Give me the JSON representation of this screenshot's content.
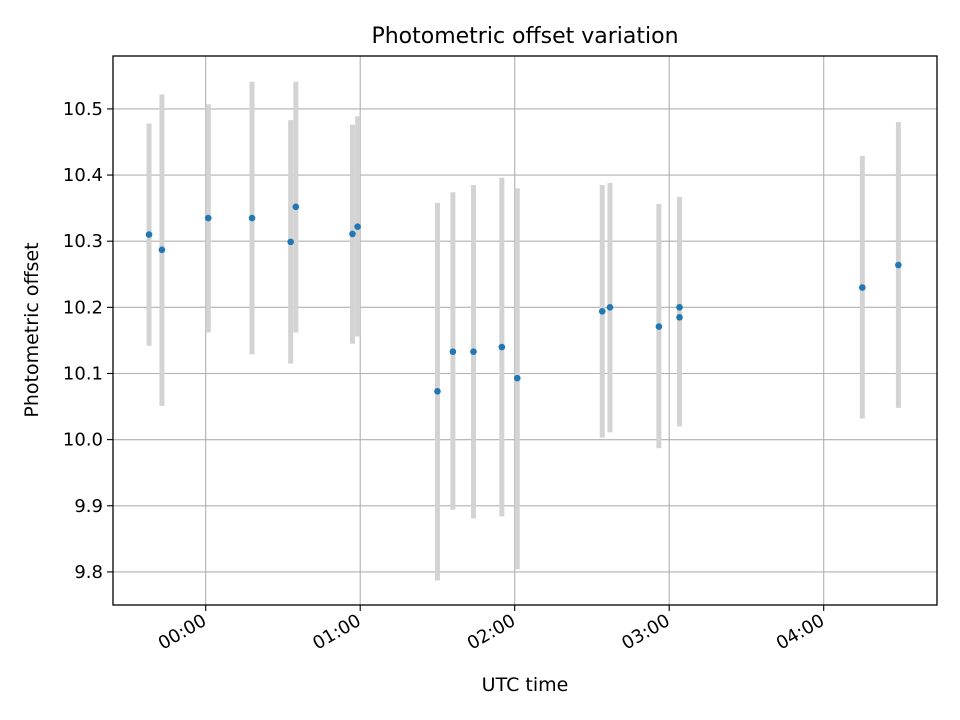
{
  "chart_data": {
    "type": "scatter",
    "title": "Photometric offset variation",
    "xlabel": "UTC time",
    "ylabel": "Photometric offset",
    "x_tick_labels": [
      "00:00",
      "01:00",
      "02:00",
      "03:00",
      "04:00"
    ],
    "x_tick_values": [
      "00:00",
      "01:00",
      "02:00",
      "03:00",
      "04:00"
    ],
    "y_tick_labels": [
      "9.8",
      "9.9",
      "10.0",
      "10.1",
      "10.2",
      "10.3",
      "10.4",
      "10.5"
    ],
    "y_tick_values": [
      9.8,
      9.9,
      10.0,
      10.1,
      10.2,
      10.3,
      10.4,
      10.5
    ],
    "xlim": [
      "23:24",
      "04:44"
    ],
    "ylim": [
      9.75,
      10.58
    ],
    "grid": true,
    "legend": "none",
    "point_color": "#1f77b4",
    "errorbar_color": "#d3d3d3",
    "series": [
      {
        "points": [
          {
            "x": "23:38",
            "y": 10.31,
            "low": 10.142,
            "high": 10.478
          },
          {
            "x": "23:43",
            "y": 10.287,
            "low": 10.051,
            "high": 10.522
          },
          {
            "x": "00:01",
            "y": 10.335,
            "low": 10.162,
            "high": 10.507
          },
          {
            "x": "00:18",
            "y": 10.335,
            "low": 10.129,
            "high": 10.541
          },
          {
            "x": "00:33",
            "y": 10.299,
            "low": 10.115,
            "high": 10.483
          },
          {
            "x": "00:35",
            "y": 10.352,
            "low": 10.162,
            "high": 10.541
          },
          {
            "x": "00:57",
            "y": 10.311,
            "low": 10.145,
            "high": 10.476
          },
          {
            "x": "00:59",
            "y": 10.322,
            "low": 10.156,
            "high": 10.489
          },
          {
            "x": "01:30",
            "y": 10.073,
            "low": 9.787,
            "high": 10.358
          },
          {
            "x": "01:36",
            "y": 10.133,
            "low": 9.894,
            "high": 10.374
          },
          {
            "x": "01:44",
            "y": 10.133,
            "low": 9.881,
            "high": 10.385
          },
          {
            "x": "01:55",
            "y": 10.14,
            "low": 9.884,
            "high": 10.396
          },
          {
            "x": "02:01",
            "y": 10.093,
            "low": 9.804,
            "high": 10.38
          },
          {
            "x": "02:34",
            "y": 10.194,
            "low": 10.003,
            "high": 10.385
          },
          {
            "x": "02:37",
            "y": 10.2,
            "low": 10.011,
            "high": 10.388
          },
          {
            "x": "02:56",
            "y": 10.171,
            "low": 9.987,
            "high": 10.356
          },
          {
            "x": "03:04",
            "y": 10.2,
            "low": 10.032,
            "high": 10.367
          },
          {
            "x": "03:04",
            "y": 10.185,
            "low": 10.02,
            "high": 10.349
          },
          {
            "x": "04:15",
            "y": 10.23,
            "low": 10.032,
            "high": 10.429
          },
          {
            "x": "04:29",
            "y": 10.264,
            "low": 10.048,
            "high": 10.48
          }
        ]
      }
    ]
  }
}
